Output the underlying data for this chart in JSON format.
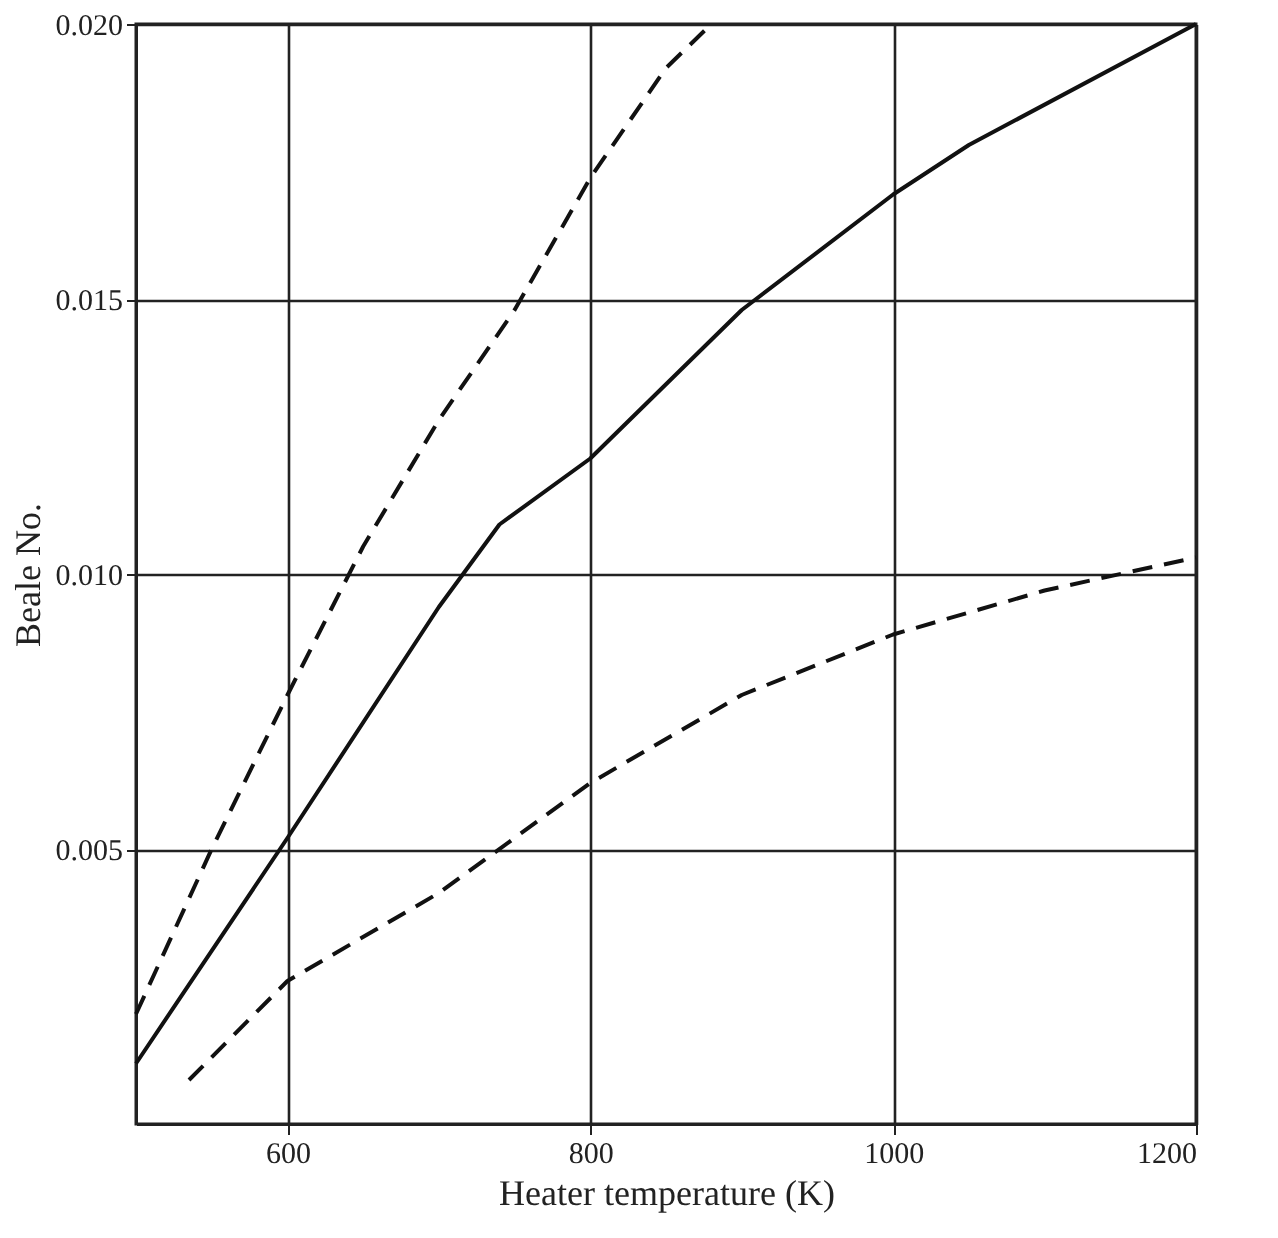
{
  "chart_data": {
    "type": "line",
    "xlabel": "Heater temperature (K)",
    "ylabel": "Beale No.",
    "xlim": [
      500,
      1200
    ],
    "xticks": [
      600,
      800,
      1000,
      1200
    ],
    "ylim": [
      0,
      0.02
    ],
    "yticks": [
      {
        "value": 0.005,
        "label": "0.005"
      },
      {
        "value": 0.01,
        "label": "0.010"
      },
      {
        "value": 0.015,
        "label": "0.015"
      },
      {
        "value": 0.02,
        "label": "0.020"
      }
    ],
    "grid": true,
    "marker": "none",
    "series": [
      {
        "color": "#111111",
        "line_style": "dashed",
        "x": [
          500,
          550,
          600,
          650,
          700,
          750,
          800,
          850,
          880
        ],
        "values": [
          0.002,
          0.005,
          0.0078,
          0.0105,
          0.0128,
          0.0148,
          0.0172,
          0.0192,
          0.02
        ]
      },
      {
        "color": "#111111",
        "line_style": "solid",
        "x": [
          500,
          600,
          700,
          740,
          800,
          900,
          1000,
          1050,
          1200
        ],
        "values": [
          0.0011,
          0.0052,
          0.0094,
          0.0109,
          0.0121,
          0.0148,
          0.0169,
          0.0178,
          0.02
        ]
      },
      {
        "color": "#111111",
        "line_style": "dashed",
        "x": [
          535,
          600,
          700,
          750,
          800,
          900,
          1000,
          1100,
          1200
        ],
        "values": [
          0.0008,
          0.0026,
          0.0042,
          0.0052,
          0.0062,
          0.0078,
          0.0089,
          0.0097,
          0.0103
        ]
      }
    ]
  }
}
